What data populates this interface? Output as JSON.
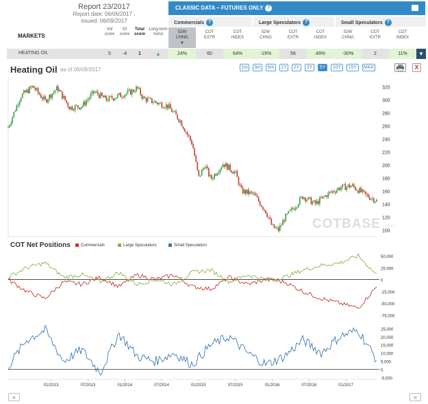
{
  "report": {
    "title": "Report 23/2017",
    "date": "Report date: 06/06/2017 ,",
    "issued": "issued: 06/09/2017"
  },
  "markets_label": "MARKETS",
  "market_cols": [
    {
      "l1": "Vol",
      "l2": "score",
      "bold": false
    },
    {
      "l1": "OI",
      "l2": "score",
      "bold": false
    },
    {
      "l1": "Total",
      "l2": "score",
      "bold": true
    },
    {
      "l1": "Long-term",
      "l2": "trend",
      "bold": false
    }
  ],
  "classic_bar": {
    "title": "CLASSIC DATA – FUTURES ONLY",
    "help": "?"
  },
  "groups": [
    {
      "label": "Commercials",
      "help": "?"
    },
    {
      "label": "Large Speculators",
      "help": "?"
    },
    {
      "label": "Small Speculators",
      "help": "?"
    }
  ],
  "sub_cols": [
    {
      "l1": "52W",
      "l2": "CHNG",
      "arrow": "▼"
    },
    {
      "l1": "COT",
      "l2": "EXTR",
      "arrow": ""
    },
    {
      "l1": "COT",
      "l2": "INDEX",
      "arrow": ""
    },
    {
      "l1": "52W",
      "l2": "CHNG",
      "arrow": ""
    },
    {
      "l1": "COT",
      "l2": "EXTR",
      "arrow": ""
    },
    {
      "l1": "COT",
      "l2": "INDEX",
      "arrow": ""
    },
    {
      "l1": "52W",
      "l2": "CHNG",
      "arrow": ""
    },
    {
      "l1": "COT",
      "l2": "EXTR",
      "arrow": ""
    },
    {
      "l1": "COT",
      "l2": "INDEX",
      "arrow": ""
    }
  ],
  "row": {
    "name": "HEATING OIL",
    "vol": "5",
    "oi": "-4",
    "total": "1",
    "trend": "up-arrow-icon",
    "values": [
      "24%",
      "60",
      "64%",
      "-19%",
      "56",
      "49%",
      "-30%",
      "2",
      "11%"
    ]
  },
  "dropdown_icon": "▼",
  "chart_header": {
    "title": "Heating Oil",
    "asof": "as of 06/09/2017"
  },
  "ranges": [
    "1m",
    "3m",
    "6m",
    "1Y",
    "2Y",
    "3Y",
    "5Y",
    "10Y",
    "15Y",
    "MAX"
  ],
  "active_range": "5Y",
  "close_label": "X",
  "nav": {
    "prev": "«",
    "next": "»"
  },
  "watermark": {
    "main": "COTBASE",
    "sub": ".com"
  },
  "cot_section": {
    "title": "COT Net Positions",
    "legend": [
      {
        "name": "Commercials",
        "color": "#c0392b"
      },
      {
        "name": "Large Speculators",
        "color": "#8ab34a"
      },
      {
        "name": "Small Speculators",
        "color": "#3c78b4"
      }
    ]
  },
  "colors": {
    "accent": "#3389c6",
    "up": "#2e9e3a",
    "down": "#c0392b",
    "commercials": "#c0392b",
    "large": "#8ab34a",
    "small": "#3c78b4"
  },
  "chart_data": [
    {
      "type": "candlestick",
      "title": "Heating Oil",
      "ylim": [
        90,
        335
      ],
      "yticks": [
        100,
        120,
        140,
        160,
        180,
        200,
        220,
        240,
        260,
        280,
        300,
        320
      ],
      "x_range": [
        "2012-06",
        "2017-06"
      ],
      "price_path": [
        [
          "2012-06",
          258
        ],
        [
          "2012-08",
          305
        ],
        [
          "2012-10",
          320
        ],
        [
          "2012-12",
          298
        ],
        [
          "2013-02",
          318
        ],
        [
          "2013-04",
          288
        ],
        [
          "2013-06",
          290
        ],
        [
          "2013-08",
          312
        ],
        [
          "2013-10",
          300
        ],
        [
          "2013-12",
          306
        ],
        [
          "2014-02",
          312
        ],
        [
          "2014-03",
          318
        ],
        [
          "2014-04",
          302
        ],
        [
          "2014-06",
          296
        ],
        [
          "2014-08",
          290
        ],
        [
          "2014-10",
          268
        ],
        [
          "2014-12",
          232
        ],
        [
          "2015-01",
          180
        ],
        [
          "2015-02",
          200
        ],
        [
          "2015-03",
          178
        ],
        [
          "2015-05",
          202
        ],
        [
          "2015-07",
          188
        ],
        [
          "2015-08",
          160
        ],
        [
          "2015-10",
          155
        ],
        [
          "2015-12",
          128
        ],
        [
          "2016-01",
          105
        ],
        [
          "2016-02",
          100
        ],
        [
          "2016-03",
          118
        ],
        [
          "2016-05",
          140
        ],
        [
          "2016-06",
          152
        ],
        [
          "2016-08",
          140
        ],
        [
          "2016-10",
          155
        ],
        [
          "2016-12",
          165
        ],
        [
          "2017-02",
          168
        ],
        [
          "2017-04",
          155
        ],
        [
          "2017-06",
          145
        ]
      ]
    },
    {
      "type": "line",
      "title": "COT Net Positions",
      "ylim": [
        -80000,
        60000
      ],
      "yticks": [
        50000,
        25000,
        0,
        -25000,
        -50000,
        -75000
      ],
      "ytick_labels": [
        "50,000",
        "25,000",
        "0",
        "-25,000",
        "-50,000",
        "-75,000"
      ],
      "series": [
        {
          "name": "Commercials",
          "x": [
            "2012-06",
            "2012-09",
            "2012-12",
            "2013-03",
            "2013-06",
            "2013-09",
            "2013-12",
            "2014-03",
            "2014-06",
            "2014-09",
            "2014-12",
            "2015-03",
            "2015-06",
            "2015-09",
            "2015-12",
            "2016-03",
            "2016-06",
            "2016-09",
            "2016-12",
            "2017-03",
            "2017-06"
          ],
          "values": [
            0,
            -25000,
            -40000,
            -5000,
            -10000,
            5000,
            -15000,
            10000,
            0,
            10000,
            -15000,
            -20000,
            5000,
            -10000,
            0,
            -5000,
            -25000,
            -40000,
            -50000,
            -60000,
            -15000
          ]
        },
        {
          "name": "Large Speculators",
          "x": [
            "2012-06",
            "2012-09",
            "2012-12",
            "2013-03",
            "2013-06",
            "2013-09",
            "2013-12",
            "2014-03",
            "2014-06",
            "2014-09",
            "2014-12",
            "2015-03",
            "2015-06",
            "2015-09",
            "2015-12",
            "2016-03",
            "2016-06",
            "2016-09",
            "2016-12",
            "2017-03",
            "2017-06"
          ],
          "values": [
            5000,
            25000,
            35000,
            5000,
            10000,
            -5000,
            15000,
            -10000,
            0,
            -10000,
            15000,
            20000,
            -5000,
            10000,
            0,
            5000,
            20000,
            30000,
            35000,
            50000,
            10000
          ]
        }
      ]
    },
    {
      "type": "line",
      "title": "Small Speculators",
      "ylim": [
        -6000,
        27000
      ],
      "yticks": [
        25000,
        20000,
        15000,
        10000,
        5000,
        0,
        -5000
      ],
      "ytick_labels": [
        "25,000",
        "20,000",
        "15,000",
        "10,000",
        "5,000",
        "0",
        "-5,000"
      ],
      "x_ticks": [
        "01/2013",
        "07/2013",
        "01/2014",
        "07/2014",
        "01/2015",
        "07/2015",
        "01/2016",
        "07/2016",
        "01/2017"
      ],
      "series": [
        {
          "name": "Small Speculators",
          "x": [
            "2012-06",
            "2012-09",
            "2012-12",
            "2013-03",
            "2013-06",
            "2013-09",
            "2013-12",
            "2014-03",
            "2014-06",
            "2014-09",
            "2014-12",
            "2015-03",
            "2015-06",
            "2015-09",
            "2015-12",
            "2016-03",
            "2016-06",
            "2016-09",
            "2016-12",
            "2017-03",
            "2017-06"
          ],
          "values": [
            2000,
            18000,
            24000,
            5000,
            12000,
            -2000,
            22000,
            8000,
            5000,
            10000,
            3000,
            15000,
            20000,
            10000,
            3000,
            8000,
            18000,
            10000,
            20000,
            24000,
            6000
          ]
        }
      ]
    }
  ]
}
